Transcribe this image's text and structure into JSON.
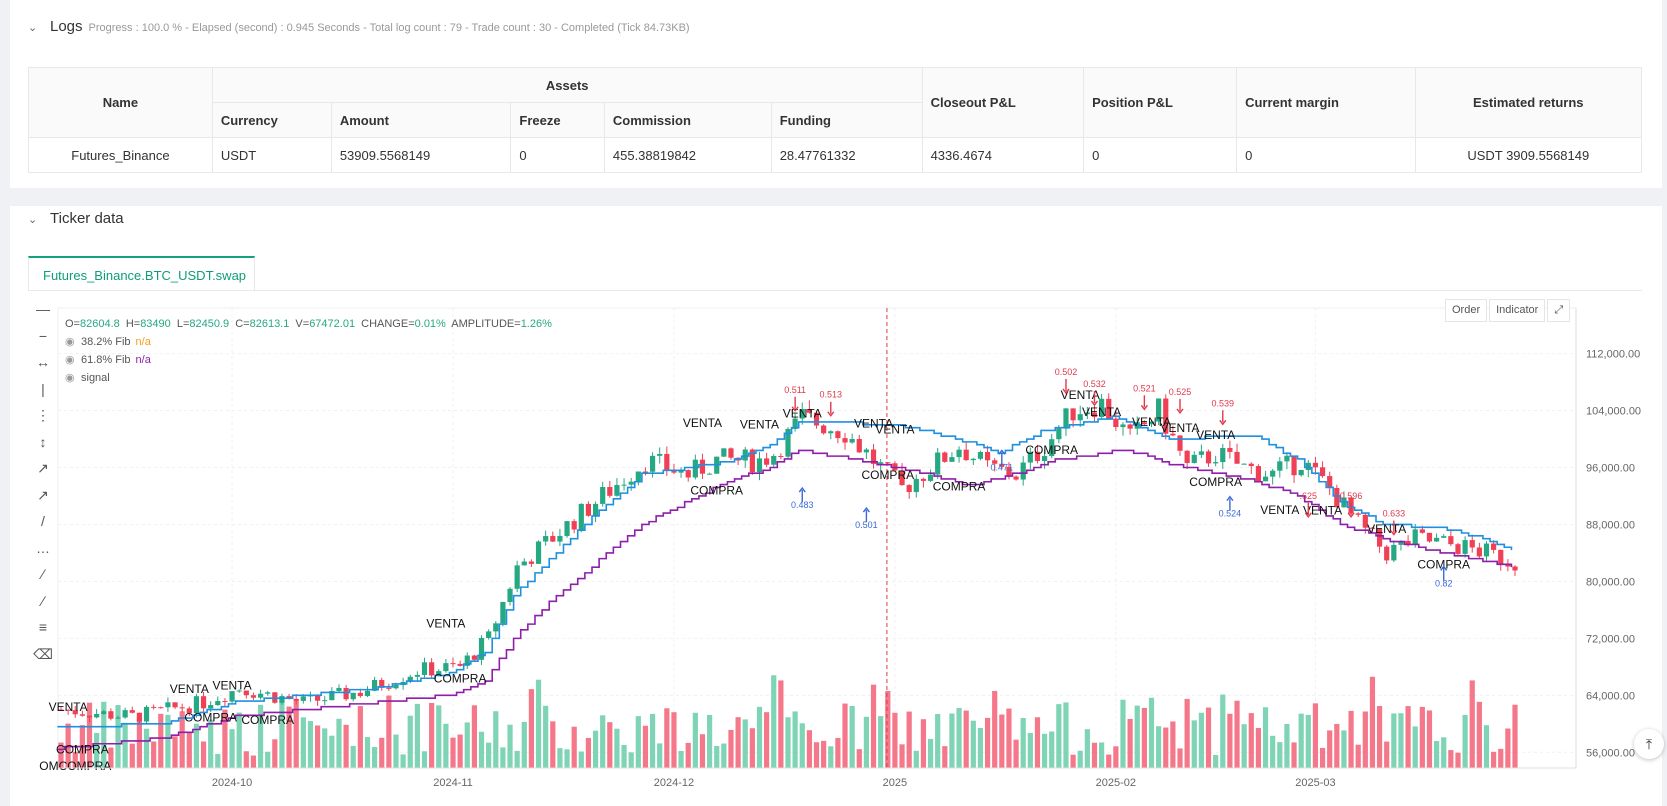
{
  "logs": {
    "title": "Logs",
    "status": "Progress : 100.0 % - Elapsed (second) : 0.945  Seconds - Total log count : 79 - Trade count : 30 - Completed (Tick 84.73KB)",
    "table": {
      "group_header": "Assets",
      "headers": {
        "name": "Name",
        "currency": "Currency",
        "amount": "Amount",
        "freeze": "Freeze",
        "commission": "Commission",
        "funding": "Funding",
        "closeout": "Closeout P&L",
        "position": "Position P&L",
        "margin": "Current margin",
        "returns": "Estimated returns"
      },
      "row": {
        "name": "Futures_Binance",
        "currency": "USDT",
        "amount": "53909.5568149",
        "freeze": "0",
        "commission": "455.38819842",
        "funding": "28.47761332",
        "closeout": "4336.4674",
        "position": "0",
        "margin": "0",
        "returns": "USDT 3909.5568149"
      }
    }
  },
  "ticker": {
    "title": "Ticker data",
    "tab": "Futures_Binance.BTC_USDT.swap",
    "buttons": {
      "order": "Order",
      "indicator": "Indicator"
    }
  },
  "legend": {
    "ohlc_o_label": "O=",
    "ohlc_o": "82604.8",
    "ohlc_h_label": "H=",
    "ohlc_h": "83490",
    "ohlc_l_label": "L=",
    "ohlc_l": "82450.9",
    "ohlc_c_label": "C=",
    "ohlc_c": "82613.1",
    "ohlc_v_label": "V=",
    "ohlc_v": "67472.01",
    "change_label": "CHANGE=",
    "change": "0.01%",
    "amp_label": "AMPLITUDE=",
    "amp": "1.26%",
    "fib38_label": "38.2% Fib",
    "fib38_val": "n/a",
    "fib61_label": "61.8% Fib",
    "fib61_val": "n/a",
    "signal_label": "signal"
  },
  "colors": {
    "up": "#26a883",
    "down": "#ef4056",
    "fib38": "#1f8fe0",
    "fib61": "#8e1fa8",
    "vol_up": "#7fd4b6",
    "vol_down": "#f4788a",
    "accent": "#13a27b",
    "label_down": "#e0394c",
    "label_up": "#3a6ad8"
  },
  "chart_data": {
    "type": "candlestick",
    "y_axis": {
      "ticks": [
        "112,000.00",
        "104,000.00",
        "96,000.00",
        "88,000.00",
        "80,000.00",
        "72,000.00",
        "64,000.00",
        "56,000.00"
      ],
      "tick_values": [
        112000,
        104000,
        96000,
        88000,
        80000,
        72000,
        64000,
        56000
      ],
      "range": [
        50000,
        117000
      ]
    },
    "x_axis": {
      "ticks": [
        "2024-10",
        "2024-11",
        "2024-12",
        "2025",
        "2025-02",
        "2025-03"
      ],
      "tick_index": [
        24,
        55,
        86,
        117,
        148,
        176
      ]
    },
    "candle_count": 205,
    "keypoints": [
      [
        0,
        62000
      ],
      [
        10,
        61000
      ],
      [
        20,
        63000
      ],
      [
        25,
        65000
      ],
      [
        34,
        63000
      ],
      [
        42,
        64500
      ],
      [
        50,
        67500
      ],
      [
        56,
        68000
      ],
      [
        60,
        72000
      ],
      [
        64,
        82000
      ],
      [
        70,
        87000
      ],
      [
        76,
        92000
      ],
      [
        82,
        97000
      ],
      [
        88,
        95000
      ],
      [
        92,
        97000
      ],
      [
        98,
        97000
      ],
      [
        100,
        98000
      ],
      [
        104,
        103000
      ],
      [
        110,
        101000
      ],
      [
        114,
        97000
      ],
      [
        118,
        93000
      ],
      [
        122,
        96000
      ],
      [
        126,
        99000
      ],
      [
        130,
        96000
      ],
      [
        134,
        95000
      ],
      [
        138,
        99000
      ],
      [
        142,
        104000
      ],
      [
        146,
        105000
      ],
      [
        150,
        100000
      ],
      [
        154,
        104000
      ],
      [
        158,
        96000
      ],
      [
        162,
        98000
      ],
      [
        166,
        96000
      ],
      [
        170,
        95000
      ],
      [
        174,
        97000
      ],
      [
        178,
        93000
      ],
      [
        182,
        88000
      ],
      [
        186,
        84000
      ],
      [
        190,
        86000
      ],
      [
        196,
        85000
      ],
      [
        200,
        84000
      ],
      [
        204,
        82600
      ]
    ],
    "fib38_keypoints": [
      [
        0,
        59500
      ],
      [
        15,
        60000
      ],
      [
        25,
        63000
      ],
      [
        45,
        65000
      ],
      [
        55,
        67000
      ],
      [
        60,
        70000
      ],
      [
        64,
        78000
      ],
      [
        70,
        84000
      ],
      [
        76,
        90000
      ],
      [
        82,
        95000
      ],
      [
        95,
        97000
      ],
      [
        100,
        99000
      ],
      [
        104,
        102500
      ],
      [
        118,
        102000
      ],
      [
        128,
        99500
      ],
      [
        132,
        98000
      ],
      [
        138,
        101000
      ],
      [
        148,
        103000
      ],
      [
        156,
        100000
      ],
      [
        168,
        100500
      ],
      [
        174,
        97000
      ],
      [
        180,
        91000
      ],
      [
        186,
        88000
      ],
      [
        194,
        87500
      ],
      [
        200,
        86000
      ],
      [
        204,
        84500
      ]
    ],
    "fib61_keypoints": [
      [
        0,
        56500
      ],
      [
        15,
        58000
      ],
      [
        25,
        61000
      ],
      [
        45,
        63000
      ],
      [
        55,
        64000
      ],
      [
        60,
        66000
      ],
      [
        64,
        72000
      ],
      [
        70,
        78000
      ],
      [
        76,
        83000
      ],
      [
        82,
        88000
      ],
      [
        94,
        94000
      ],
      [
        100,
        96000
      ],
      [
        104,
        98500
      ],
      [
        118,
        96000
      ],
      [
        128,
        93500
      ],
      [
        134,
        95000
      ],
      [
        140,
        97000
      ],
      [
        150,
        98500
      ],
      [
        156,
        96500
      ],
      [
        168,
        94000
      ],
      [
        174,
        92000
      ],
      [
        180,
        88000
      ],
      [
        186,
        86000
      ],
      [
        194,
        84000
      ],
      [
        204,
        82000
      ]
    ],
    "signals": [
      {
        "text": "VENTA",
        "i": 1,
        "y": 61800
      },
      {
        "text": "COMPRA",
        "i": 3,
        "y": 55800
      },
      {
        "text": "OMCOMPRA",
        "i": 2,
        "y": 53500
      },
      {
        "text": "VENTA",
        "i": 18,
        "y": 64300
      },
      {
        "text": "VENTA",
        "i": 24,
        "y": 64800
      },
      {
        "text": "COMPRA",
        "i": 21,
        "y": 60300
      },
      {
        "text": "COMPRA",
        "i": 29,
        "y": 60000
      },
      {
        "text": "VENTA",
        "i": 54,
        "y": 73500
      },
      {
        "text": "COMPRA",
        "i": 56,
        "y": 65800
      },
      {
        "text": "VENTA",
        "i": 90,
        "y": 101700
      },
      {
        "text": "VENTA",
        "i": 98,
        "y": 101500
      },
      {
        "text": "VENTA",
        "i": 104,
        "y": 103000
      },
      {
        "text": "COMPRA",
        "i": 92,
        "y": 92200
      },
      {
        "text": "VENTA",
        "i": 114,
        "y": 101600
      },
      {
        "text": "VENTA",
        "i": 117,
        "y": 100800
      },
      {
        "text": "COMPRA",
        "i": 116,
        "y": 94400
      },
      {
        "text": "COMPRA",
        "i": 126,
        "y": 92800
      },
      {
        "text": "COMPRA",
        "i": 139,
        "y": 97900
      },
      {
        "text": "VENTA",
        "i": 143,
        "y": 105600
      },
      {
        "text": "VENTA",
        "i": 146,
        "y": 103200
      },
      {
        "text": "VENTA",
        "i": 153,
        "y": 101800
      },
      {
        "text": "VENTA",
        "i": 157,
        "y": 101000
      },
      {
        "text": "VENTA",
        "i": 162,
        "y": 100000
      },
      {
        "text": "COMPRA",
        "i": 162,
        "y": 93400
      },
      {
        "text": "VENTA",
        "i": 171,
        "y": 89500
      },
      {
        "text": "VENTA",
        "i": 177,
        "y": 89400
      },
      {
        "text": "VENTA",
        "i": 186,
        "y": 86800
      },
      {
        "text": "COMPRA",
        "i": 194,
        "y": 81800
      }
    ],
    "value_labels": [
      {
        "text": "0.511",
        "i": 103,
        "y": 106500,
        "dir": "down"
      },
      {
        "text": "0.513",
        "i": 108,
        "y": 105800,
        "dir": "down"
      },
      {
        "text": "0.483",
        "i": 104,
        "y": 90300,
        "dir": "up"
      },
      {
        "text": "0.501",
        "i": 113,
        "y": 87500,
        "dir": "up"
      },
      {
        "text": "0.471",
        "i": 132,
        "y": 95600,
        "dir": "up"
      },
      {
        "text": "0.502",
        "i": 141,
        "y": 109000,
        "dir": "down"
      },
      {
        "text": "0.532",
        "i": 145,
        "y": 107300,
        "dir": "down"
      },
      {
        "text": "0.521",
        "i": 152,
        "y": 106700,
        "dir": "down"
      },
      {
        "text": "0.525",
        "i": 157,
        "y": 106200,
        "dir": "down"
      },
      {
        "text": "0.539",
        "i": 163,
        "y": 104600,
        "dir": "down"
      },
      {
        "text": "0.524",
        "i": 164,
        "y": 89100,
        "dir": "up"
      },
      {
        "text": ".625",
        "i": 175,
        "y": 91600,
        "dir": "down"
      },
      {
        "text": "0.596",
        "i": 181,
        "y": 91600,
        "dir": "down"
      },
      {
        "text": "0.633",
        "i": 187,
        "y": 89100,
        "dir": "down"
      },
      {
        "text": "0.82",
        "i": 194,
        "y": 79300,
        "dir": "up"
      }
    ],
    "current_marker_index": 117
  }
}
